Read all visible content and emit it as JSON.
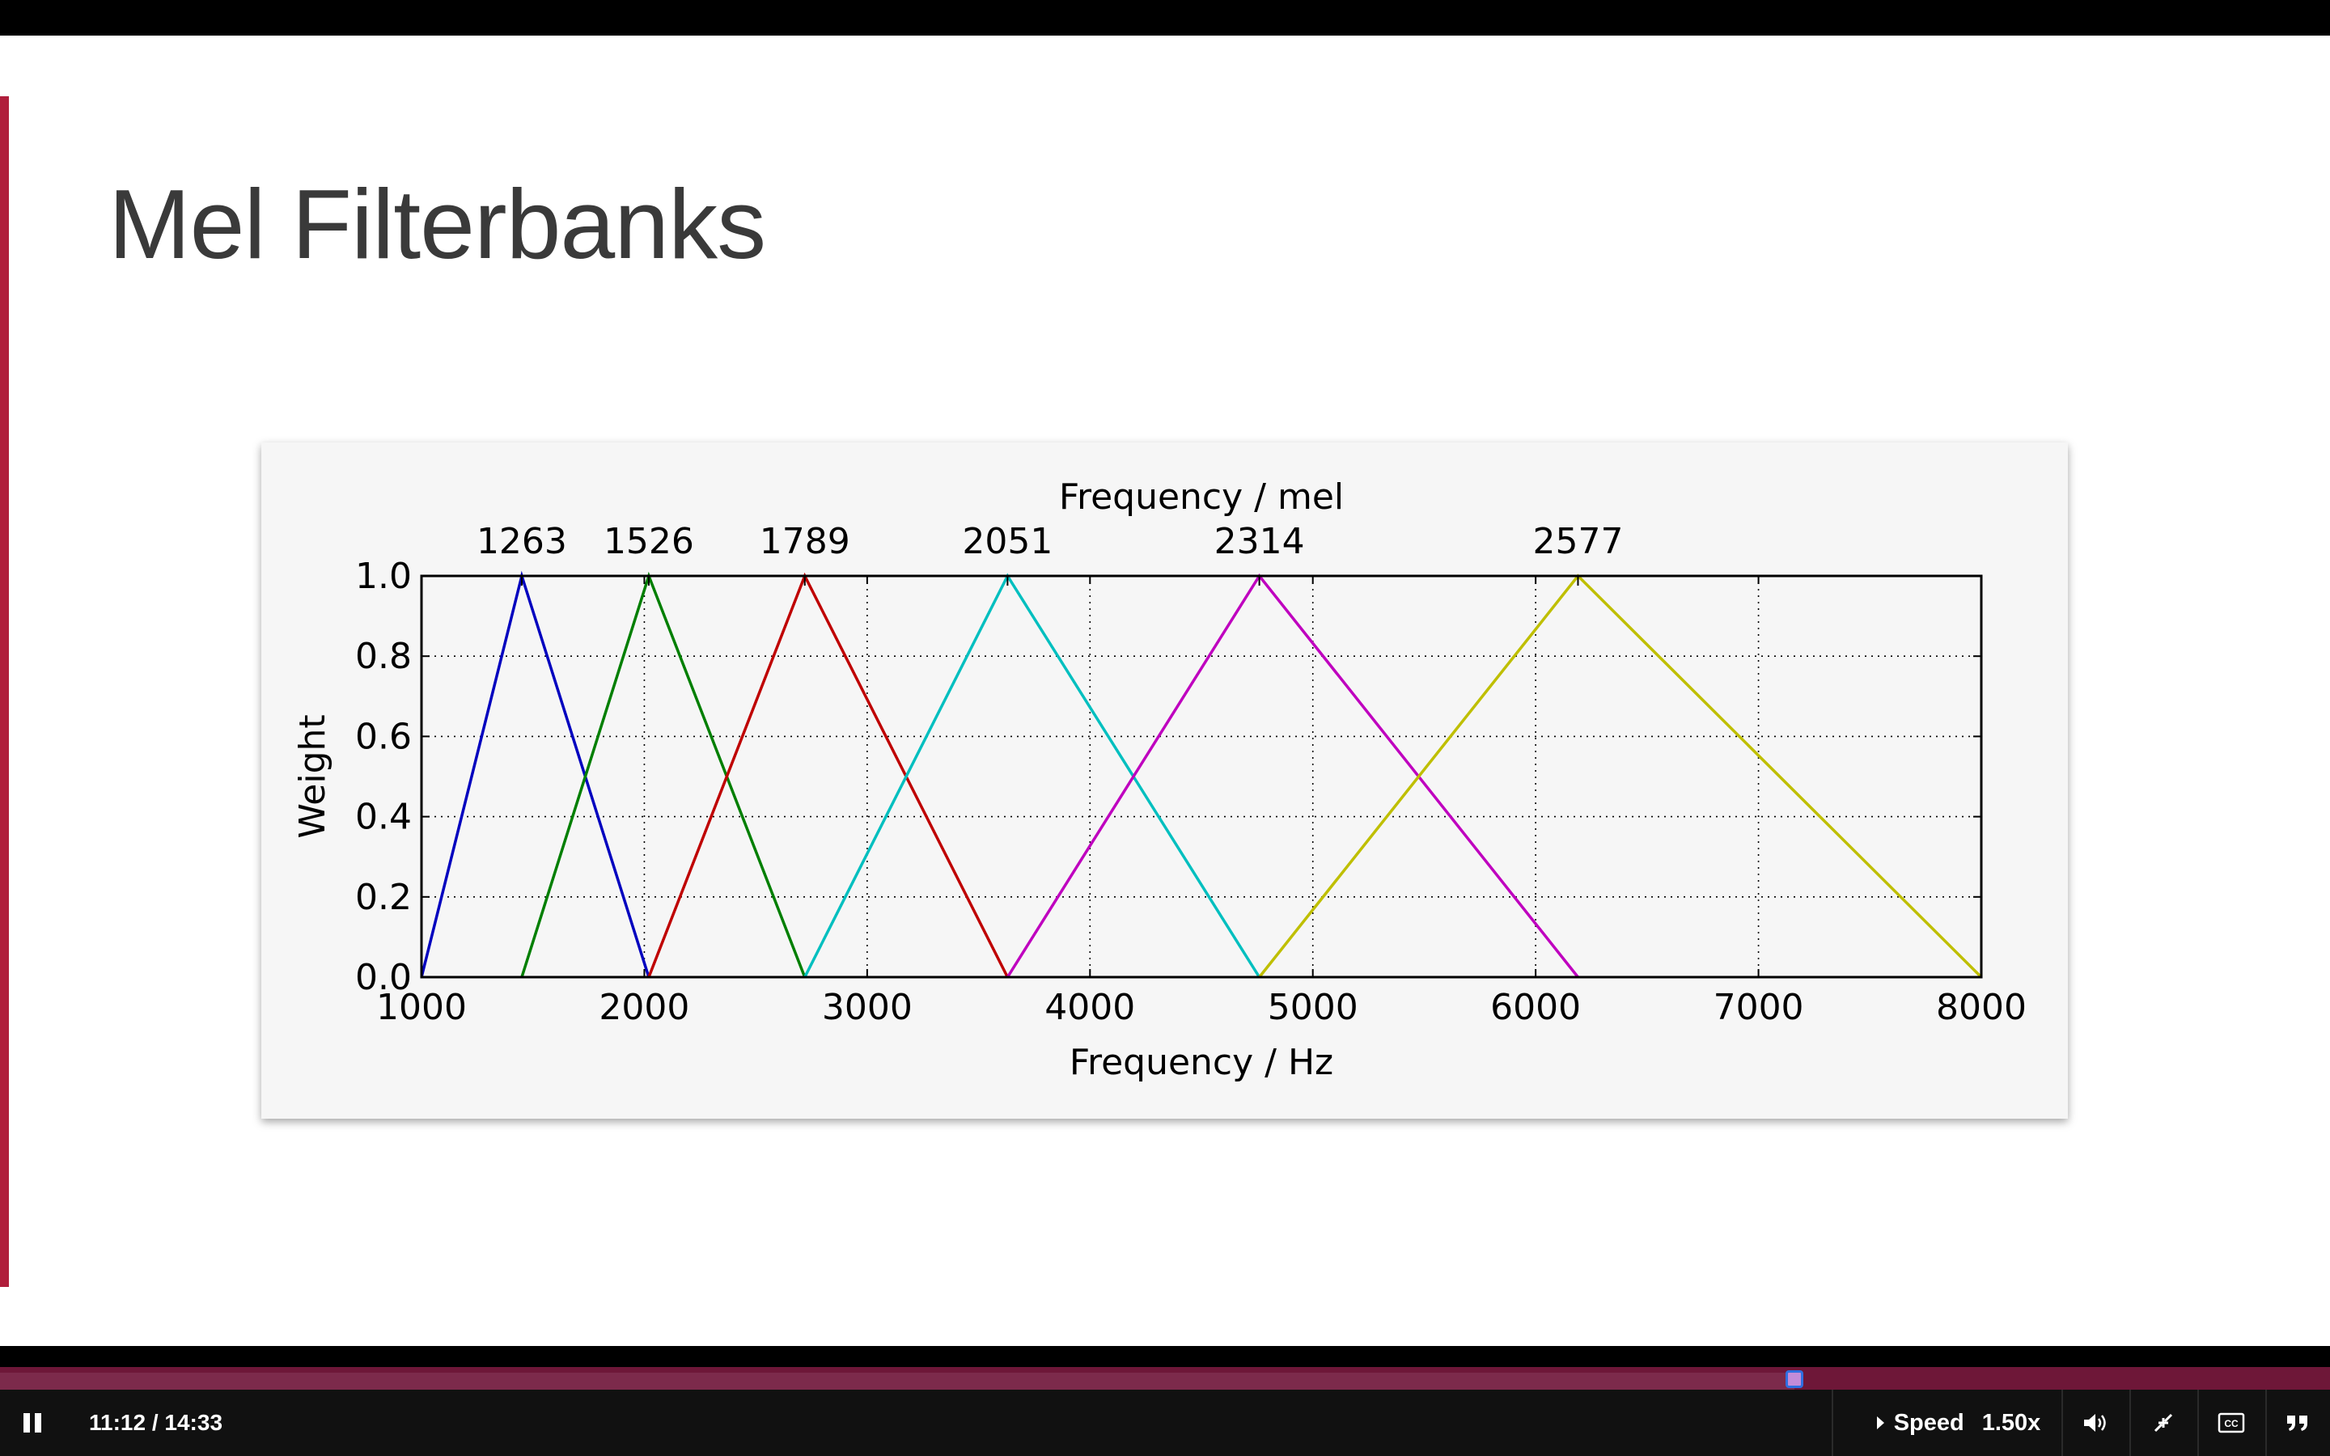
{
  "slide": {
    "title": "Mel Filterbanks",
    "accent_color": "#b01e3c"
  },
  "chart_data": {
    "type": "line",
    "title": "",
    "xlabel": "Frequency / Hz",
    "ylabel": "Weight",
    "top_axis_label": "Frequency / mel",
    "xlim": [
      1000,
      8000
    ],
    "ylim": [
      0.0,
      1.0
    ],
    "x_ticks": [
      1000,
      2000,
      3000,
      4000,
      5000,
      6000,
      7000,
      8000
    ],
    "y_ticks": [
      "0.0",
      "0.2",
      "0.4",
      "0.6",
      "0.8",
      "1.0"
    ],
    "top_ticks": [
      {
        "label": "1263",
        "hz": 1450
      },
      {
        "label": "1526",
        "hz": 2020
      },
      {
        "label": "1789",
        "hz": 2720
      },
      {
        "label": "2051",
        "hz": 3630
      },
      {
        "label": "2314",
        "hz": 4760
      },
      {
        "label": "2577",
        "hz": 6190
      }
    ],
    "grid": true,
    "grid_style": "dotted",
    "series": [
      {
        "color": "#0000bf",
        "x": [
          1000,
          1450,
          2020
        ],
        "y": [
          0,
          1,
          0
        ]
      },
      {
        "color": "#007f00",
        "x": [
          1450,
          2020,
          2720
        ],
        "y": [
          0,
          1,
          0
        ]
      },
      {
        "color": "#bf0000",
        "x": [
          2020,
          2720,
          3630
        ],
        "y": [
          0,
          1,
          0
        ]
      },
      {
        "color": "#00bfbf",
        "x": [
          2720,
          3630,
          4760
        ],
        "y": [
          0,
          1,
          0
        ]
      },
      {
        "color": "#bf00bf",
        "x": [
          3630,
          4760,
          6190
        ],
        "y": [
          0,
          1,
          0
        ]
      },
      {
        "color": "#bfbf00",
        "x": [
          4760,
          6190,
          8000
        ],
        "y": [
          0,
          1,
          0
        ]
      }
    ]
  },
  "player": {
    "time_display": "11:12 / 14:33",
    "progress_fraction": 0.77,
    "speed_label": "Speed",
    "speed_value": "1.50x",
    "progress_color": "#6e1738"
  }
}
